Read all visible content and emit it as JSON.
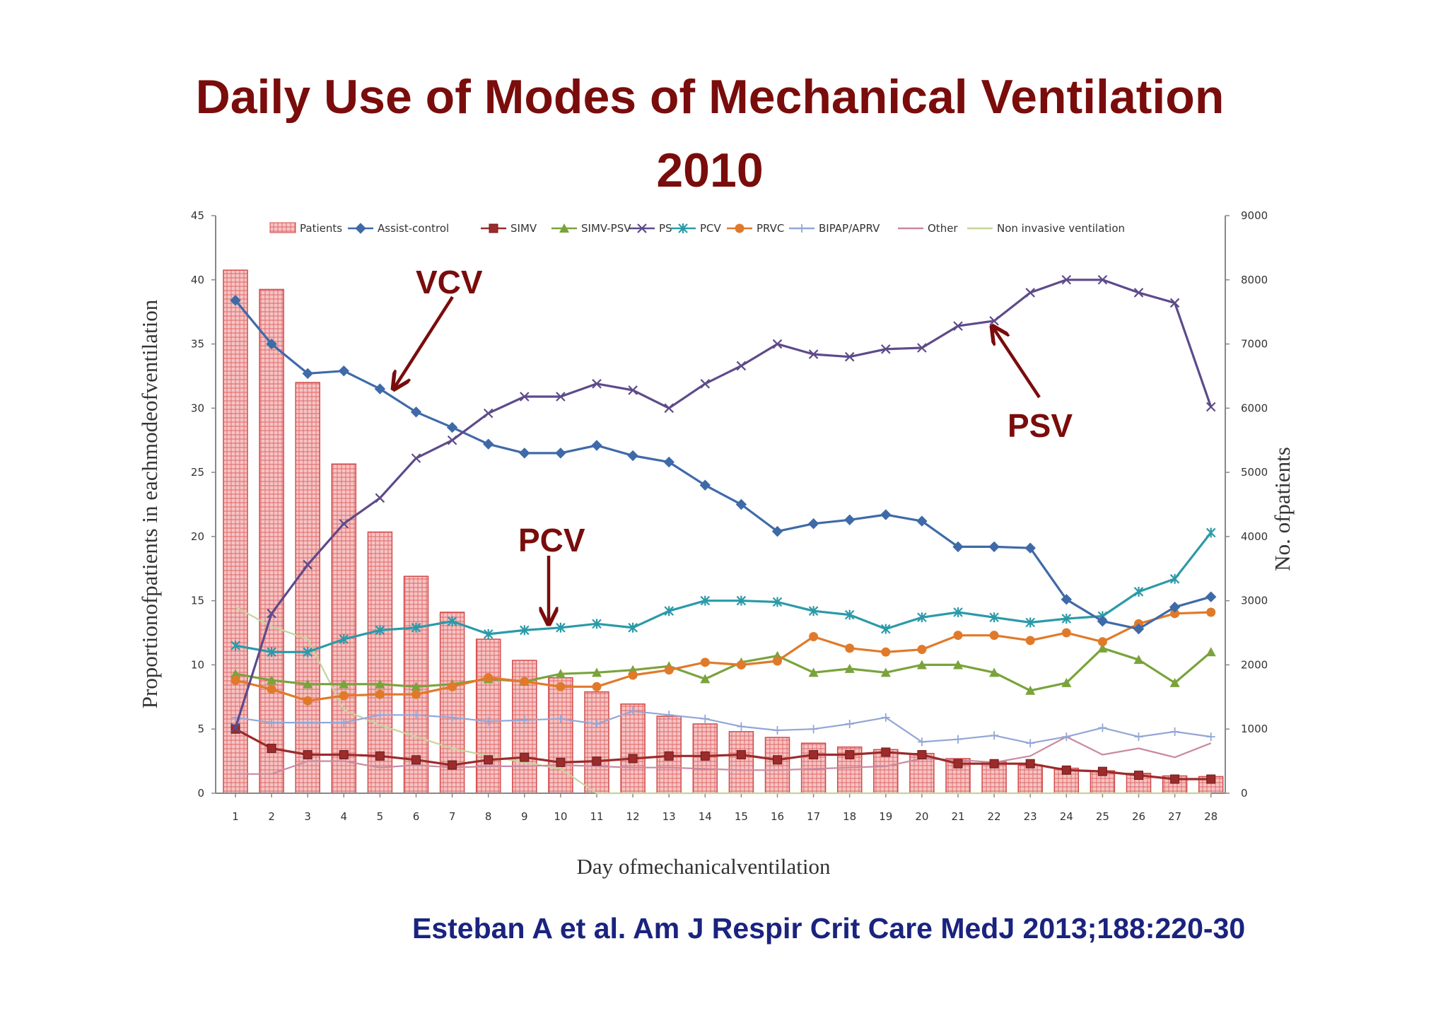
{
  "slide": {
    "title_line1": "Daily Use of Modes of Mechanical Ventilation",
    "title_line2": "2010",
    "citation": "Esteban A et al. Am J Respir Crit Care MedJ 2013;188:220-30"
  },
  "chart_data": {
    "type": "line",
    "xlabel": "Day ofmechanicalventilation",
    "ylabel": "Proportionofpatients in eachmodeofventilation",
    "y2label": "No. ofpatients",
    "x": [
      1,
      2,
      3,
      4,
      5,
      6,
      7,
      8,
      9,
      10,
      11,
      12,
      13,
      14,
      15,
      16,
      17,
      18,
      19,
      20,
      21,
      22,
      23,
      24,
      25,
      26,
      27,
      28
    ],
    "ylim": [
      0,
      45
    ],
    "yticks": [
      0,
      5,
      10,
      15,
      20,
      25,
      30,
      35,
      40,
      45
    ],
    "y2lim": [
      0,
      9000
    ],
    "y2ticks": [
      0,
      1000,
      2000,
      3000,
      4000,
      5000,
      6000,
      7000,
      8000,
      9000
    ],
    "legend_position": "top",
    "bar_series": {
      "name": "Patients",
      "axis": "right",
      "color": "#e57373",
      "values": [
        8150,
        7850,
        6400,
        5130,
        4070,
        3380,
        2820,
        2400,
        2070,
        1800,
        1580,
        1390,
        1200,
        1080,
        960,
        870,
        780,
        720,
        680,
        620,
        540,
        490,
        440,
        390,
        350,
        310,
        270,
        260
      ]
    },
    "series": [
      {
        "name": "Assist-control",
        "color": "#3f6aa8",
        "marker": "diamond",
        "values": [
          38.4,
          35.0,
          32.7,
          32.9,
          31.5,
          29.7,
          28.5,
          27.2,
          26.5,
          26.5,
          27.1,
          26.3,
          25.8,
          24.0,
          22.5,
          20.4,
          21.0,
          21.3,
          21.7,
          21.2,
          19.2,
          19.2,
          19.1,
          15.1,
          13.4,
          12.8,
          14.5,
          15.3
        ]
      },
      {
        "name": "SIMV",
        "color": "#9c2b2b",
        "marker": "square",
        "values": [
          5.0,
          3.5,
          3.0,
          3.0,
          2.9,
          2.6,
          2.2,
          2.6,
          2.8,
          2.4,
          2.5,
          2.7,
          2.9,
          2.9,
          3.0,
          2.6,
          3.0,
          3.0,
          3.2,
          3.0,
          2.3,
          2.3,
          2.3,
          1.8,
          1.7,
          1.4,
          1.1,
          1.1
        ]
      },
      {
        "name": "SIMV-PSV",
        "color": "#7aa33c",
        "marker": "triangle",
        "values": [
          9.3,
          8.8,
          8.5,
          8.5,
          8.5,
          8.3,
          8.5,
          8.9,
          8.7,
          9.3,
          9.4,
          9.6,
          9.9,
          8.9,
          10.2,
          10.7,
          9.4,
          9.7,
          9.4,
          10.0,
          10.0,
          9.4,
          8.0,
          8.6,
          11.3,
          10.4,
          8.6,
          11.0
        ]
      },
      {
        "name": "PS",
        "color": "#5e4a8a",
        "marker": "x",
        "values": [
          5.1,
          14.0,
          17.8,
          21.0,
          23.0,
          26.1,
          27.5,
          29.6,
          30.9,
          30.9,
          31.9,
          31.4,
          30.0,
          31.9,
          33.3,
          35.0,
          34.2,
          34.0,
          34.6,
          34.7,
          36.4,
          36.8,
          39.0,
          40.0,
          40.0,
          39.0,
          38.2,
          30.1
        ]
      },
      {
        "name": "PCV",
        "color": "#2b9aa8",
        "marker": "asterisk",
        "values": [
          11.5,
          11.0,
          11.0,
          12.0,
          12.7,
          12.9,
          13.4,
          12.4,
          12.7,
          12.9,
          13.2,
          12.9,
          14.2,
          15.0,
          15.0,
          14.9,
          14.2,
          13.9,
          12.8,
          13.7,
          14.1,
          13.7,
          13.3,
          13.6,
          13.8,
          15.7,
          16.7,
          20.3
        ]
      },
      {
        "name": "PRVC",
        "color": "#e07a2a",
        "marker": "circle",
        "values": [
          8.8,
          8.1,
          7.2,
          7.6,
          7.7,
          7.7,
          8.3,
          9.0,
          8.7,
          8.3,
          8.3,
          9.2,
          9.6,
          10.2,
          10.0,
          10.3,
          12.2,
          11.3,
          11.0,
          11.2,
          12.3,
          12.3,
          11.9,
          12.5,
          11.8,
          13.2,
          14.0,
          14.1
        ]
      },
      {
        "name": "BIPAP/APRV",
        "color": "#94a6d6",
        "marker": "plus",
        "values": [
          5.9,
          5.5,
          5.5,
          5.5,
          6.1,
          6.1,
          5.9,
          5.6,
          5.7,
          5.8,
          5.4,
          6.4,
          6.1,
          5.8,
          5.2,
          4.9,
          5.0,
          5.4,
          5.9,
          4.0,
          4.2,
          4.5,
          3.9,
          4.4,
          5.1,
          4.4,
          4.8,
          4.4
        ]
      },
      {
        "name": "Other",
        "color": "#c98aa0",
        "marker": "none",
        "values": [
          1.5,
          1.5,
          2.5,
          2.5,
          2.0,
          2.2,
          2.0,
          2.1,
          2.1,
          2.2,
          2.1,
          2.0,
          2.0,
          1.9,
          1.8,
          1.8,
          1.9,
          2.0,
          2.1,
          2.7,
          2.6,
          2.4,
          2.9,
          4.4,
          3.0,
          3.5,
          2.8,
          3.9
        ]
      },
      {
        "name": "Non invasive ventilation",
        "color": "#c4d49a",
        "marker": "none",
        "values": [
          14.5,
          13.0,
          12.0,
          6.5,
          5.3,
          4.4,
          3.5,
          2.9,
          2.4,
          1.9,
          0.0,
          0.0,
          0.0,
          0.0,
          0.0,
          0.0,
          0.0,
          0.0,
          0.0,
          0.0,
          0.0,
          0.0,
          0.0,
          0.0,
          0.0,
          0.0,
          0.0,
          0.0
        ]
      }
    ],
    "annotations": [
      {
        "text": "VCV",
        "target_series": "Assist-control",
        "target_day": 5
      },
      {
        "text": "PCV",
        "target_series": "PCV",
        "target_day": 9
      },
      {
        "text": "PSV",
        "target_series": "PS",
        "target_day": 22
      }
    ]
  }
}
